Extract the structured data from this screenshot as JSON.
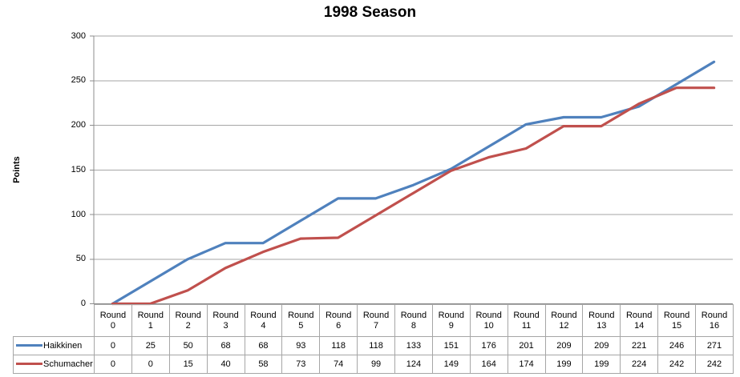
{
  "title": "1998 Season",
  "chart_data": {
    "type": "line",
    "title": "1998 Season",
    "xlabel": "",
    "ylabel": "Points",
    "categories": [
      "Round 0",
      "Round 1",
      "Round 2",
      "Round 3",
      "Round 4",
      "Round 5",
      "Round 6",
      "Round 7",
      "Round 8",
      "Round 9",
      "Round 10",
      "Round 11",
      "Round 12",
      "Round 13",
      "Round 14",
      "Round 15",
      "Round 16"
    ],
    "series": [
      {
        "name": "Haikkinen",
        "color": "#4F81BD",
        "values": [
          0,
          25,
          50,
          68,
          68,
          93,
          118,
          118,
          133,
          151,
          176,
          201,
          209,
          209,
          221,
          246,
          271
        ]
      },
      {
        "name": "Schumacher",
        "color": "#C0504D",
        "values": [
          0,
          0,
          15,
          40,
          58,
          73,
          74,
          99,
          124,
          149,
          164,
          174,
          199,
          199,
          224,
          242,
          242
        ]
      }
    ],
    "ylim": [
      0,
      300
    ],
    "yticks": [
      0,
      50,
      100,
      150,
      200,
      250,
      300
    ],
    "grid": "horizontal",
    "legend_position": "data-table-left",
    "data_table_shown": true
  },
  "colors": {
    "background": "#FFFFFF",
    "axis": "#8C8C8C",
    "grid": "#A6A6A6",
    "table_border": "#A6A6A6",
    "text": "#000000"
  }
}
